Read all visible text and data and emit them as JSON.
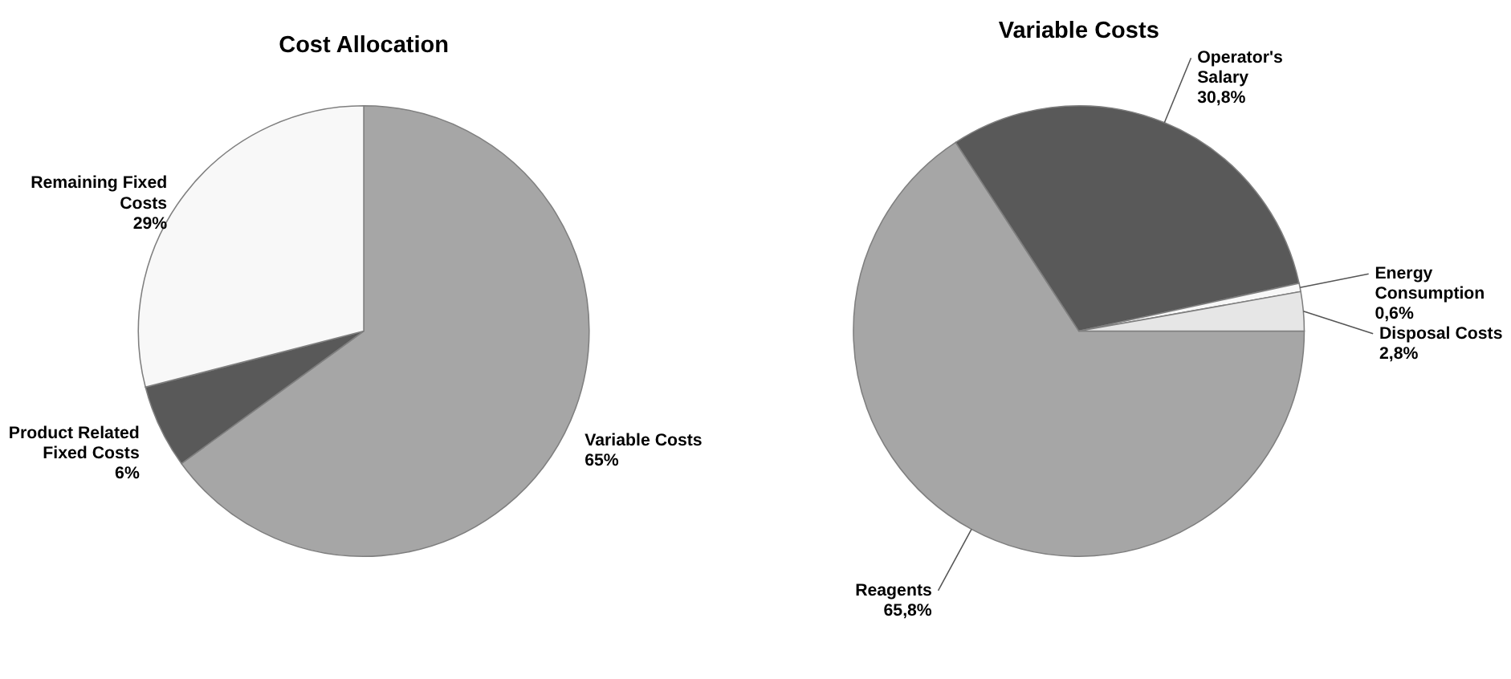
{
  "chart_data": [
    {
      "type": "pie",
      "title": "Cost Allocation",
      "categories": [
        "Variable Costs",
        "Product Related Fixed Costs",
        "Remaining Fixed Costs"
      ],
      "values": [
        65,
        6,
        29
      ],
      "value_labels": [
        "65%",
        "6%",
        "29%"
      ],
      "colors": [
        "#a6a6a6",
        "#595959",
        "#f8f8f8"
      ]
    },
    {
      "type": "pie",
      "title": "Variable Costs",
      "categories": [
        "Reagents",
        "Operator's Salary",
        "Energy Consumption",
        "Disposal Costs"
      ],
      "values": [
        65.8,
        30.8,
        0.6,
        2.8
      ],
      "value_labels": [
        "65,8%",
        "30,8%",
        "0,6%",
        "2,8%"
      ],
      "colors": [
        "#a6a6a6",
        "#595959",
        "#f8f8f8",
        "#e6e6e6"
      ]
    }
  ]
}
